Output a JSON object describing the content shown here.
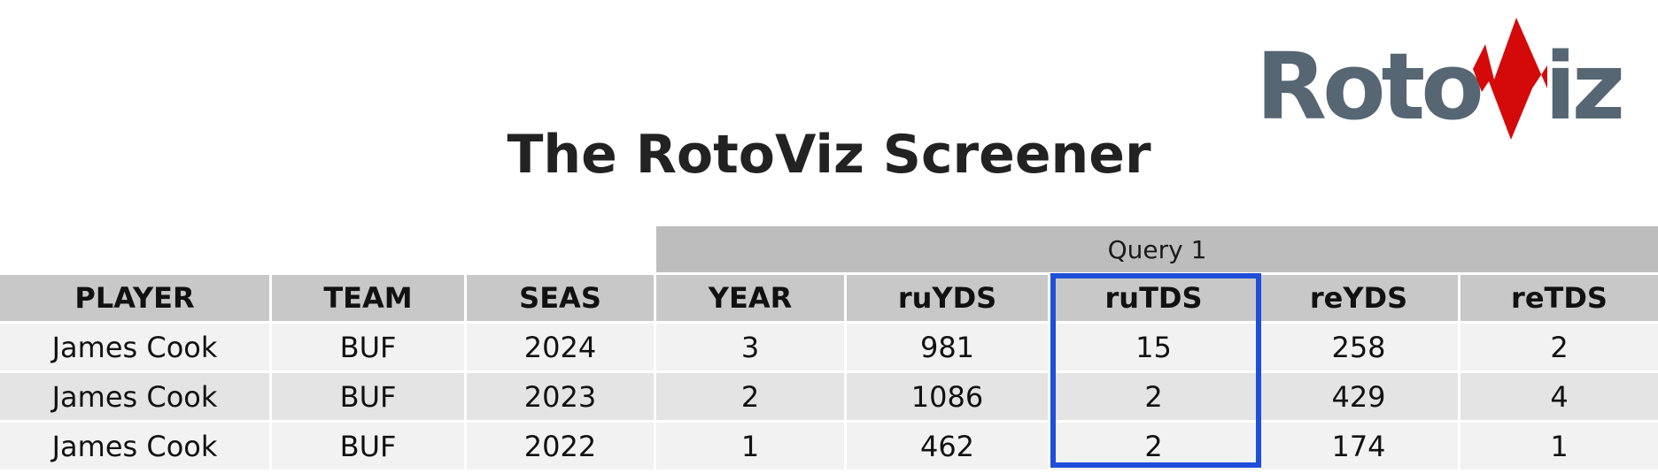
{
  "logo": {
    "part_before": "Roto",
    "part_after": "iz",
    "text_color": "#566673",
    "accent_color": "#d40a0a"
  },
  "title": "The RotoViz Screener",
  "table": {
    "group_label": "Query 1",
    "columns": [
      "PLAYER",
      "TEAM",
      "SEAS",
      "YEAR",
      "ruYDS",
      "ruTDS",
      "reYDS",
      "reTDS"
    ],
    "rows": [
      [
        "James Cook",
        "BUF",
        "2024",
        "3",
        "981",
        "15",
        "258",
        "2"
      ],
      [
        "James Cook",
        "BUF",
        "2023",
        "2",
        "1086",
        "2",
        "429",
        "4"
      ],
      [
        "James Cook",
        "BUF",
        "2022",
        "1",
        "462",
        "2",
        "174",
        "1"
      ]
    ],
    "highlighted_column": "ruTDS",
    "highlight_color": "#1f4fd8"
  }
}
